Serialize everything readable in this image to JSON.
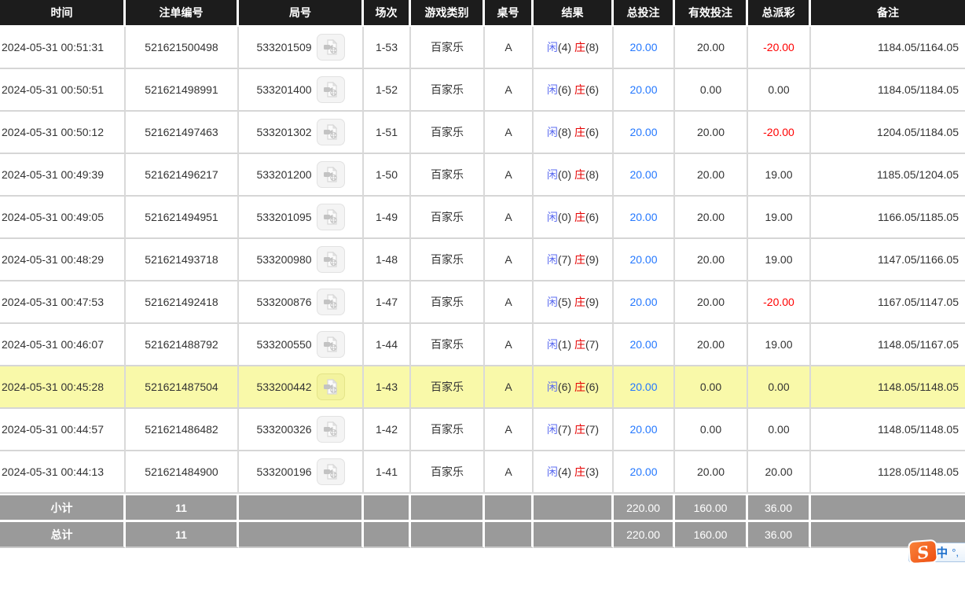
{
  "table": {
    "columns": [
      {
        "label": "时间"
      },
      {
        "label": "注单编号"
      },
      {
        "label": "局号"
      },
      {
        "label": "场次"
      },
      {
        "label": "游戏类别"
      },
      {
        "label": "桌号"
      },
      {
        "label": "结果"
      },
      {
        "label": "总投注"
      },
      {
        "label": "有效投注"
      },
      {
        "label": "总派彩"
      },
      {
        "label": "备注"
      }
    ],
    "rows": [
      {
        "time": "2024-05-31 00:51:31",
        "bet_id": "521621500498",
        "round": "533201509",
        "session": "1-53",
        "game": "百家乐",
        "table_no": "A",
        "result": {
          "p_label": "闲",
          "p": "(4)",
          "b_label": "庄",
          "b": "(8)"
        },
        "total_bet": "20.00",
        "valid_bet": "20.00",
        "payout": "-20.00",
        "remark": "1184.05/1164.05",
        "highlight": false
      },
      {
        "time": "2024-05-31 00:50:51",
        "bet_id": "521621498991",
        "round": "533201400",
        "session": "1-52",
        "game": "百家乐",
        "table_no": "A",
        "result": {
          "p_label": "闲",
          "p": "(6)",
          "b_label": "庄",
          "b": "(6)"
        },
        "total_bet": "20.00",
        "valid_bet": "0.00",
        "payout": "0.00",
        "remark": "1184.05/1184.05",
        "highlight": false
      },
      {
        "time": "2024-05-31 00:50:12",
        "bet_id": "521621497463",
        "round": "533201302",
        "session": "1-51",
        "game": "百家乐",
        "table_no": "A",
        "result": {
          "p_label": "闲",
          "p": "(8)",
          "b_label": "庄",
          "b": "(6)"
        },
        "total_bet": "20.00",
        "valid_bet": "20.00",
        "payout": "-20.00",
        "remark": "1204.05/1184.05",
        "highlight": false
      },
      {
        "time": "2024-05-31 00:49:39",
        "bet_id": "521621496217",
        "round": "533201200",
        "session": "1-50",
        "game": "百家乐",
        "table_no": "A",
        "result": {
          "p_label": "闲",
          "p": "(0)",
          "b_label": "庄",
          "b": "(8)"
        },
        "total_bet": "20.00",
        "valid_bet": "20.00",
        "payout": "19.00",
        "remark": "1185.05/1204.05",
        "highlight": false
      },
      {
        "time": "2024-05-31 00:49:05",
        "bet_id": "521621494951",
        "round": "533201095",
        "session": "1-49",
        "game": "百家乐",
        "table_no": "A",
        "result": {
          "p_label": "闲",
          "p": "(0)",
          "b_label": "庄",
          "b": "(6)"
        },
        "total_bet": "20.00",
        "valid_bet": "20.00",
        "payout": "19.00",
        "remark": "1166.05/1185.05",
        "highlight": false
      },
      {
        "time": "2024-05-31 00:48:29",
        "bet_id": "521621493718",
        "round": "533200980",
        "session": "1-48",
        "game": "百家乐",
        "table_no": "A",
        "result": {
          "p_label": "闲",
          "p": "(7)",
          "b_label": "庄",
          "b": "(9)"
        },
        "total_bet": "20.00",
        "valid_bet": "20.00",
        "payout": "19.00",
        "remark": "1147.05/1166.05",
        "highlight": false
      },
      {
        "time": "2024-05-31 00:47:53",
        "bet_id": "521621492418",
        "round": "533200876",
        "session": "1-47",
        "game": "百家乐",
        "table_no": "A",
        "result": {
          "p_label": "闲",
          "p": "(5)",
          "b_label": "庄",
          "b": "(9)"
        },
        "total_bet": "20.00",
        "valid_bet": "20.00",
        "payout": "-20.00",
        "remark": "1167.05/1147.05",
        "highlight": false
      },
      {
        "time": "2024-05-31 00:46:07",
        "bet_id": "521621488792",
        "round": "533200550",
        "session": "1-44",
        "game": "百家乐",
        "table_no": "A",
        "result": {
          "p_label": "闲",
          "p": "(1)",
          "b_label": "庄",
          "b": "(7)"
        },
        "total_bet": "20.00",
        "valid_bet": "20.00",
        "payout": "19.00",
        "remark": "1148.05/1167.05",
        "highlight": false
      },
      {
        "time": "2024-05-31 00:45:28",
        "bet_id": "521621487504",
        "round": "533200442",
        "session": "1-43",
        "game": "百家乐",
        "table_no": "A",
        "result": {
          "p_label": "闲",
          "p": "(6)",
          "b_label": "庄",
          "b": "(6)"
        },
        "total_bet": "20.00",
        "valid_bet": "0.00",
        "payout": "0.00",
        "remark": "1148.05/1148.05",
        "highlight": true
      },
      {
        "time": "2024-05-31 00:44:57",
        "bet_id": "521621486482",
        "round": "533200326",
        "session": "1-42",
        "game": "百家乐",
        "table_no": "A",
        "result": {
          "p_label": "闲",
          "p": "(7)",
          "b_label": "庄",
          "b": "(7)"
        },
        "total_bet": "20.00",
        "valid_bet": "0.00",
        "payout": "0.00",
        "remark": "1148.05/1148.05",
        "highlight": false
      },
      {
        "time": "2024-05-31 00:44:13",
        "bet_id": "521621484900",
        "round": "533200196",
        "session": "1-41",
        "game": "百家乐",
        "table_no": "A",
        "result": {
          "p_label": "闲",
          "p": "(4)",
          "b_label": "庄",
          "b": "(3)"
        },
        "total_bet": "20.00",
        "valid_bet": "20.00",
        "payout": "20.00",
        "remark": "1128.05/1148.05",
        "highlight": false
      }
    ],
    "subtotal": {
      "label": "小计",
      "count": "11",
      "total_bet": "220.00",
      "valid_bet": "160.00",
      "payout": "36.00"
    },
    "total": {
      "label": "总计",
      "count": "11",
      "total_bet": "220.00",
      "valid_bet": "160.00",
      "payout": "36.00"
    }
  },
  "ime": {
    "logo": "S",
    "mode": "中",
    "punct": "°,"
  },
  "colors": {
    "header_bg": "#1c1c1c",
    "footer_bg": "#9a9a9a",
    "highlight_yellow": "#f9f9a9",
    "amount_blue": "#2478ff",
    "player_blue": "#5b6bf0",
    "banker_red": "#e60000",
    "negative_red": "#ff0000"
  }
}
